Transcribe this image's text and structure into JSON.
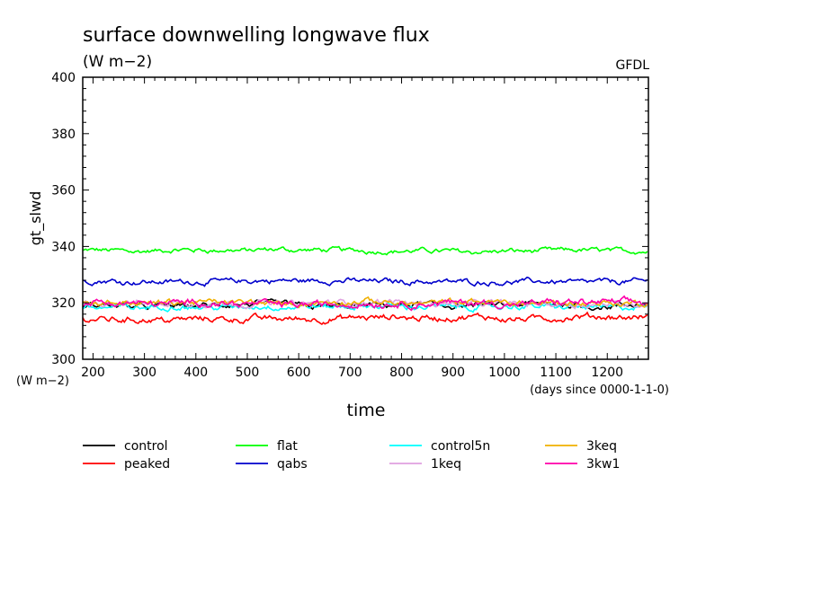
{
  "chart_data": {
    "type": "line",
    "title": "surface downwelling longwave flux",
    "subtitle": "(W m−2)",
    "source_label": "GFDL",
    "ylabel": "gt_slwd",
    "yunit_label": "(W m−2)",
    "xlabel": "time",
    "xunit_label": "(days since 0000-1-1-0)",
    "xlim": [
      180,
      1280
    ],
    "ylim": [
      300,
      400
    ],
    "x_ticks": [
      200,
      300,
      400,
      500,
      600,
      700,
      800,
      900,
      1000,
      1100,
      1200
    ],
    "y_ticks": [
      300,
      320,
      340,
      360,
      380,
      400
    ],
    "grid": false,
    "legend_position": "bottom",
    "series": [
      {
        "name": "control",
        "color": "#000000",
        "mean": 319.0,
        "noise": 1.1
      },
      {
        "name": "peaked",
        "color": "#ff0000",
        "mean": 314.5,
        "noise": 1.2
      },
      {
        "name": "flat",
        "color": "#00ff00",
        "mean": 338.5,
        "noise": 0.9
      },
      {
        "name": "qabs",
        "color": "#0000cc",
        "mean": 327.7,
        "noise": 1.0
      },
      {
        "name": "control5n",
        "color": "#00ffff",
        "mean": 318.5,
        "noise": 1.1
      },
      {
        "name": "1keq",
        "color": "#e0a0e0",
        "mean": 320.0,
        "noise": 1.1
      },
      {
        "name": "3keq",
        "color": "#f0b000",
        "mean": 320.0,
        "noise": 1.1
      },
      {
        "name": "3kw1",
        "color": "#ff00aa",
        "mean": 319.8,
        "noise": 1.3
      }
    ]
  }
}
